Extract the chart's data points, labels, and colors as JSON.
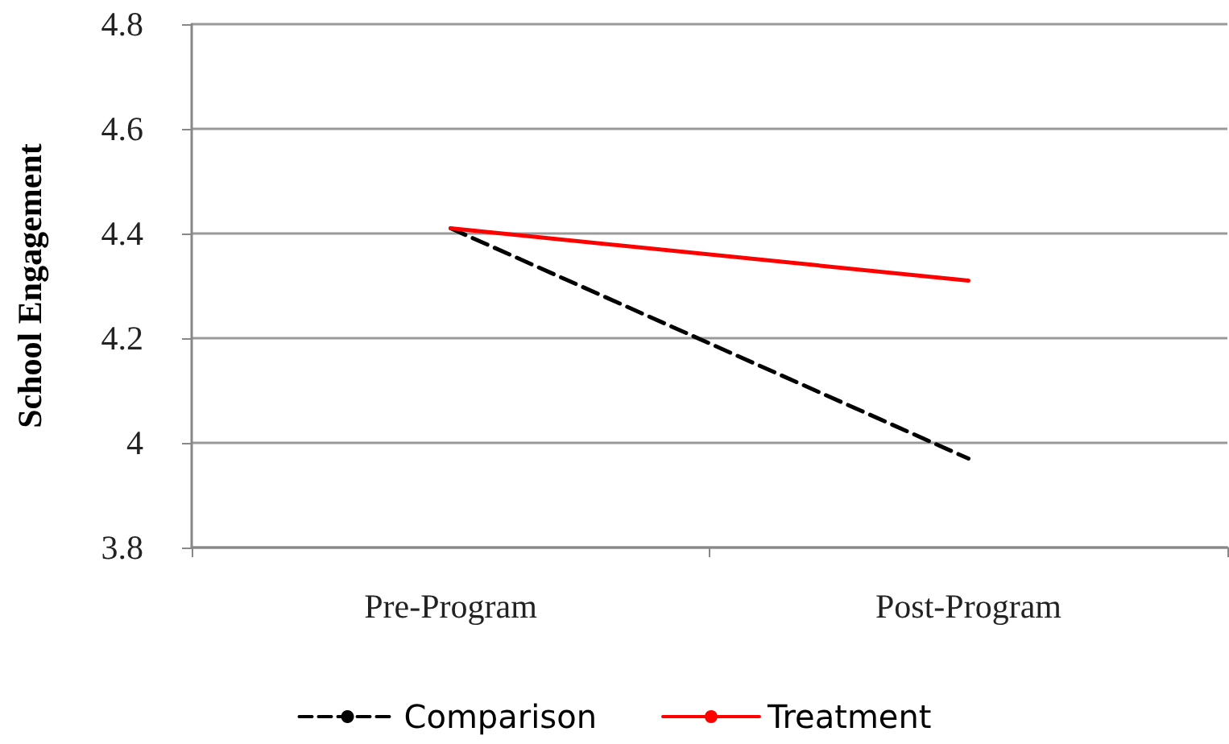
{
  "chart_data": {
    "type": "line",
    "ylabel": "School Engagement",
    "categories": [
      "Pre-Program",
      "Post-Program"
    ],
    "series": [
      {
        "name": "Comparison",
        "color": "#000000",
        "values": [
          4.41,
          3.97
        ],
        "line_style": "dashed"
      },
      {
        "name": "Treatment",
        "color": "#ff0000",
        "values": [
          4.41,
          4.31
        ],
        "line_style": "solid"
      }
    ],
    "ylim": [
      3.8,
      4.8
    ],
    "yticks": [
      3.8,
      4,
      4.2,
      4.4,
      4.6,
      4.8
    ],
    "grid": "y",
    "legend": "bottom",
    "marker": "none"
  }
}
